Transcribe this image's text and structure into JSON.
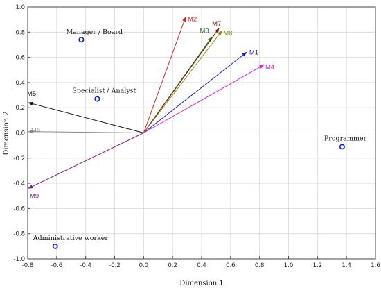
{
  "chart_data": {
    "type": "scatter",
    "title": "",
    "xlabel": "Dimension 1",
    "ylabel": "Dimension 2",
    "xlim": [
      -0.8,
      1.6
    ],
    "ylim": [
      -1.0,
      1.0
    ],
    "grid": true,
    "x_ticks": [
      "-0.8",
      "-0.6",
      "-0.4",
      "-0.2",
      "0.0",
      "0.2",
      "0.4",
      "0.6",
      "0.8",
      "1.0",
      "1.2",
      "1.4",
      "1.6"
    ],
    "y_ticks": [
      "1.0",
      "0.8",
      "0.6",
      "0.4",
      "0.2",
      "0.0",
      "-0.2",
      "-0.4",
      "-0.6",
      "-0.8",
      "-1.0"
    ],
    "points": [
      {
        "label": "Manager / Board",
        "x": -0.43,
        "y": 0.74
      },
      {
        "label": "Specialist / Analyst",
        "x": -0.32,
        "y": 0.27
      },
      {
        "label": "Programmer",
        "x": 1.37,
        "y": -0.11
      },
      {
        "label": "Administrative worker",
        "x": -0.61,
        "y": -0.9
      }
    ],
    "vectors": [
      {
        "label": "M1",
        "x": 0.71,
        "y": 0.64,
        "color": "#1414e0"
      },
      {
        "label": "M2",
        "x": 0.29,
        "y": 0.92,
        "color": "#e02020"
      },
      {
        "label": "M3",
        "x": 0.47,
        "y": 0.76,
        "color": "#1a7a1a"
      },
      {
        "label": "M4",
        "x": 0.83,
        "y": 0.54,
        "color": "#e020e0"
      },
      {
        "label": "M5",
        "x": -0.83,
        "y": 0.24,
        "color": "#111111"
      },
      {
        "label": "M6",
        "x": -0.83,
        "y": 0.01,
        "color": "#888888"
      },
      {
        "label": "M7",
        "x": 0.52,
        "y": 0.83,
        "color": "#7a1010"
      },
      {
        "label": "M8",
        "x": 0.54,
        "y": 0.81,
        "color": "#8a8a10"
      },
      {
        "label": "M9",
        "x": -0.83,
        "y": -0.44,
        "color": "#7a1a8a"
      }
    ],
    "point_color": "#0a1fd6"
  }
}
